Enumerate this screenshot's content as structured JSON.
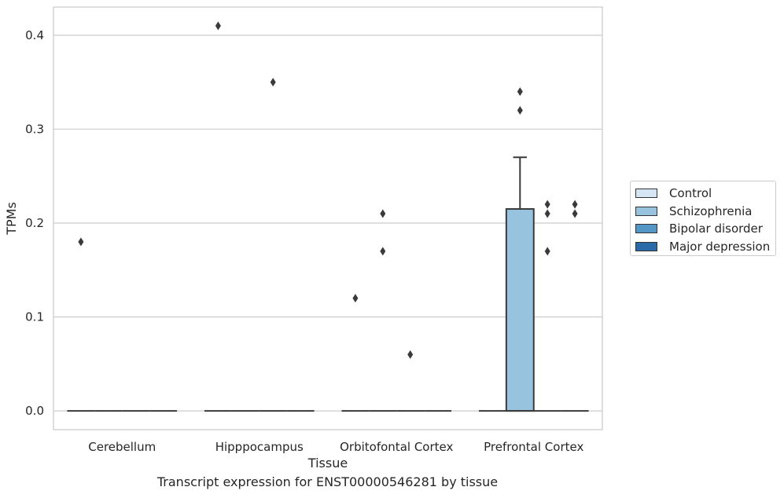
{
  "caption": "Transcript expression for ENST00000546281 by tissue",
  "chart_data": {
    "type": "box",
    "xlabel": "Tissue",
    "ylabel": "TPMs",
    "ylim": [
      -0.02,
      0.43
    ],
    "yticks": [
      0.0,
      0.1,
      0.2,
      0.3,
      0.4
    ],
    "ytick_labels": [
      "0.0",
      "0.1",
      "0.2",
      "0.3",
      "0.4"
    ],
    "grid": "horizontal",
    "legend_position": "right",
    "categories": [
      "Cerebellum",
      "Hipppocampus",
      "Orbitofontal Cortex",
      "Prefrontal Cortex"
    ],
    "series": [
      {
        "name": "Control",
        "color": "#d6e5f4",
        "boxes": [
          {
            "q1": 0,
            "median": 0,
            "q3": 0,
            "whisker_low": 0,
            "whisker_high": 0,
            "outliers": [
              0.18
            ]
          },
          {
            "q1": 0,
            "median": 0,
            "q3": 0,
            "whisker_low": 0,
            "whisker_high": 0,
            "outliers": [
              0.41
            ]
          },
          {
            "q1": 0,
            "median": 0,
            "q3": 0,
            "whisker_low": 0,
            "whisker_high": 0,
            "outliers": [
              0.12
            ]
          },
          {
            "q1": 0,
            "median": 0,
            "q3": 0,
            "whisker_low": 0,
            "whisker_high": 0,
            "outliers": []
          }
        ]
      },
      {
        "name": "Schizophrenia",
        "color": "#97c3df",
        "boxes": [
          {
            "q1": 0,
            "median": 0,
            "q3": 0,
            "whisker_low": 0,
            "whisker_high": 0,
            "outliers": []
          },
          {
            "q1": 0,
            "median": 0,
            "q3": 0,
            "whisker_low": 0,
            "whisker_high": 0,
            "outliers": []
          },
          {
            "q1": 0,
            "median": 0,
            "q3": 0,
            "whisker_low": 0,
            "whisker_high": 0,
            "outliers": [
              0.21,
              0.17
            ]
          },
          {
            "q1": 0,
            "median": 0,
            "q3": 0.215,
            "whisker_low": 0,
            "whisker_high": 0.27,
            "outliers": [
              0.34,
              0.32
            ]
          }
        ]
      },
      {
        "name": "Bipolar disorder",
        "color": "#5497c6",
        "boxes": [
          {
            "q1": 0,
            "median": 0,
            "q3": 0,
            "whisker_low": 0,
            "whisker_high": 0,
            "outliers": []
          },
          {
            "q1": 0,
            "median": 0,
            "q3": 0,
            "whisker_low": 0,
            "whisker_high": 0,
            "outliers": [
              0.35
            ]
          },
          {
            "q1": 0,
            "median": 0,
            "q3": 0,
            "whisker_low": 0,
            "whisker_high": 0,
            "outliers": [
              0.06
            ]
          },
          {
            "q1": 0,
            "median": 0,
            "q3": 0,
            "whisker_low": 0,
            "whisker_high": 0,
            "outliers": [
              0.22,
              0.21,
              0.17
            ]
          }
        ]
      },
      {
        "name": "Major depression",
        "color": "#2a6aa9",
        "boxes": [
          {
            "q1": 0,
            "median": 0,
            "q3": 0,
            "whisker_low": 0,
            "whisker_high": 0,
            "outliers": []
          },
          {
            "q1": 0,
            "median": 0,
            "q3": 0,
            "whisker_low": 0,
            "whisker_high": 0,
            "outliers": []
          },
          {
            "q1": 0,
            "median": 0,
            "q3": 0,
            "whisker_low": 0,
            "whisker_high": 0,
            "outliers": []
          },
          {
            "q1": 0,
            "median": 0,
            "q3": 0,
            "whisker_low": 0,
            "whisker_high": 0,
            "outliers": [
              0.22,
              0.21
            ]
          }
        ]
      }
    ]
  }
}
